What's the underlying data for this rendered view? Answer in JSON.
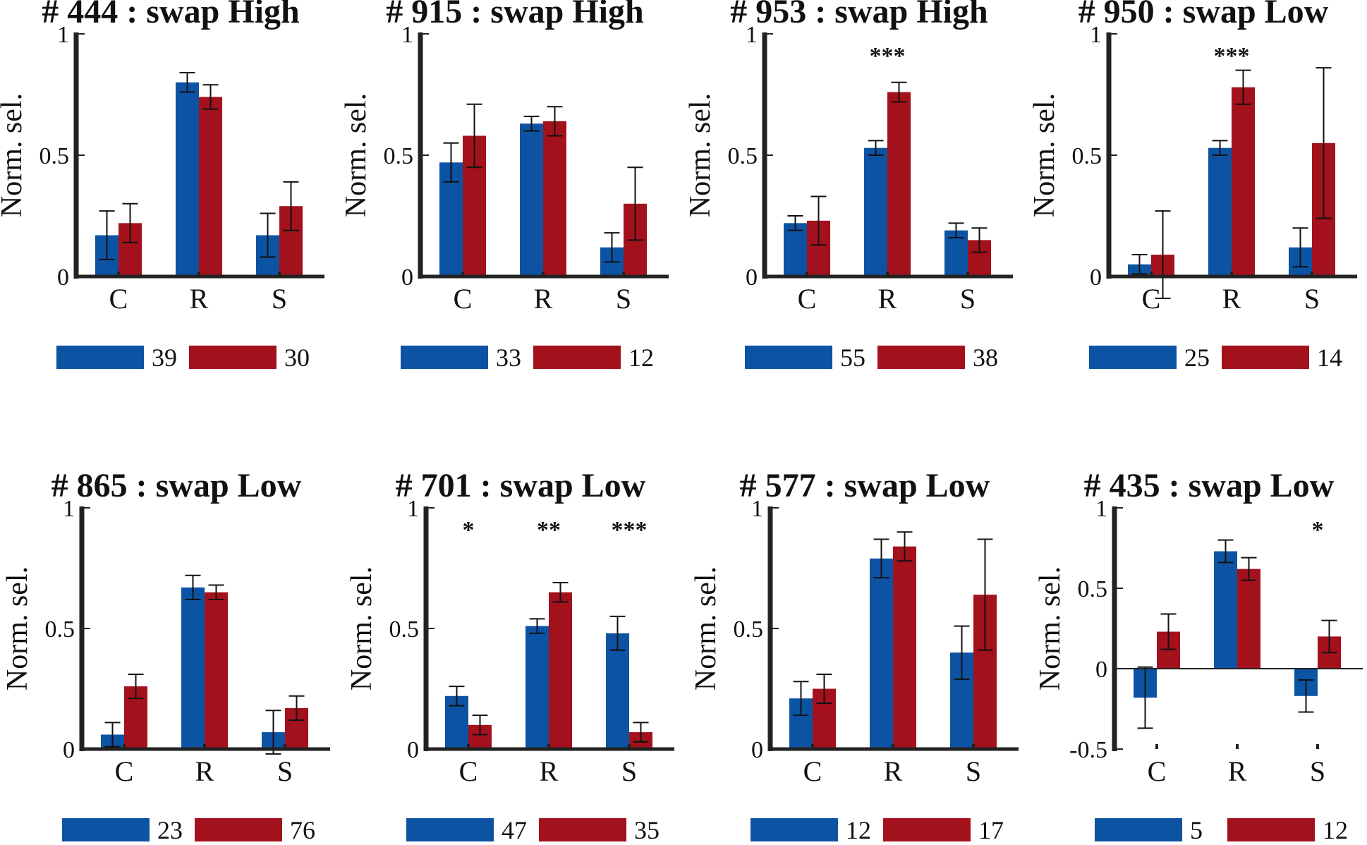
{
  "colors": {
    "blue": "#0d53a3",
    "red": "#a3111c",
    "axis": "#222222"
  },
  "chart_data": [
    {
      "type": "bar",
      "title": "# 444 : swap High",
      "ylabel": "Norm. sel.",
      "categories": [
        "C",
        "R",
        "S"
      ],
      "ylim": [
        0,
        1
      ],
      "yticks": [
        "0",
        "0.5",
        "1"
      ],
      "series": [
        {
          "name": "blue",
          "values": [
            0.17,
            0.8,
            0.17
          ],
          "errors": [
            0.1,
            0.04,
            0.09
          ],
          "count": "39"
        },
        {
          "name": "red",
          "values": [
            0.22,
            0.74,
            0.29
          ],
          "errors": [
            0.08,
            0.05,
            0.1
          ],
          "count": "30"
        }
      ],
      "significance": [
        "",
        "",
        ""
      ]
    },
    {
      "type": "bar",
      "title": "# 915 : swap High",
      "ylabel": "Norm. sel.",
      "categories": [
        "C",
        "R",
        "S"
      ],
      "ylim": [
        0,
        1
      ],
      "yticks": [
        "0",
        "0.5",
        "1"
      ],
      "series": [
        {
          "name": "blue",
          "values": [
            0.47,
            0.63,
            0.12
          ],
          "errors": [
            0.08,
            0.03,
            0.06
          ],
          "count": "33"
        },
        {
          "name": "red",
          "values": [
            0.58,
            0.64,
            0.3
          ],
          "errors": [
            0.13,
            0.06,
            0.15
          ],
          "count": "12"
        }
      ],
      "significance": [
        "",
        "",
        ""
      ]
    },
    {
      "type": "bar",
      "title": "# 953 : swap High",
      "ylabel": "Norm. sel.",
      "categories": [
        "C",
        "R",
        "S"
      ],
      "ylim": [
        0,
        1
      ],
      "yticks": [
        "0",
        "0.5",
        "1"
      ],
      "series": [
        {
          "name": "blue",
          "values": [
            0.22,
            0.53,
            0.19
          ],
          "errors": [
            0.03,
            0.03,
            0.03
          ],
          "count": "55"
        },
        {
          "name": "red",
          "values": [
            0.23,
            0.76,
            0.15
          ],
          "errors": [
            0.1,
            0.04,
            0.05
          ],
          "count": "38"
        }
      ],
      "significance": [
        "",
        "***",
        ""
      ]
    },
    {
      "type": "bar",
      "title": "# 950 : swap Low",
      "ylabel": "Norm. sel.",
      "categories": [
        "C",
        "R",
        "S"
      ],
      "ylim": [
        0,
        1
      ],
      "yticks": [
        "0",
        "0.5",
        "1"
      ],
      "series": [
        {
          "name": "blue",
          "values": [
            0.05,
            0.53,
            0.12
          ],
          "errors": [
            0.04,
            0.03,
            0.08
          ],
          "count": "25"
        },
        {
          "name": "red",
          "values": [
            0.09,
            0.78,
            0.55
          ],
          "errors": [
            0.18,
            0.07,
            0.31
          ],
          "count": "14"
        }
      ],
      "significance": [
        "",
        "***",
        ""
      ]
    },
    {
      "type": "bar",
      "title": "# 865 : swap Low",
      "ylabel": "Norm. sel.",
      "categories": [
        "C",
        "R",
        "S"
      ],
      "ylim": [
        0,
        1
      ],
      "yticks": [
        "0",
        "0.5",
        "1"
      ],
      "series": [
        {
          "name": "blue",
          "values": [
            0.06,
            0.67,
            0.07
          ],
          "errors": [
            0.05,
            0.05,
            0.09
          ],
          "count": "23"
        },
        {
          "name": "red",
          "values": [
            0.26,
            0.65,
            0.17
          ],
          "errors": [
            0.05,
            0.03,
            0.05
          ],
          "count": "76"
        }
      ],
      "significance": [
        "",
        "",
        ""
      ]
    },
    {
      "type": "bar",
      "title": "# 701 : swap Low",
      "ylabel": "Norm. sel.",
      "categories": [
        "C",
        "R",
        "S"
      ],
      "ylim": [
        0,
        1
      ],
      "yticks": [
        "0",
        "0.5",
        "1"
      ],
      "series": [
        {
          "name": "blue",
          "values": [
            0.22,
            0.51,
            0.48
          ],
          "errors": [
            0.04,
            0.03,
            0.07
          ],
          "count": "47"
        },
        {
          "name": "red",
          "values": [
            0.1,
            0.65,
            0.07
          ],
          "errors": [
            0.04,
            0.04,
            0.04
          ],
          "count": "35"
        }
      ],
      "significance": [
        "*",
        "**",
        "***"
      ]
    },
    {
      "type": "bar",
      "title": "# 577 : swap Low",
      "ylabel": "Norm. sel.",
      "categories": [
        "C",
        "R",
        "S"
      ],
      "ylim": [
        0,
        1
      ],
      "yticks": [
        "0",
        "0.5",
        "1"
      ],
      "series": [
        {
          "name": "blue",
          "values": [
            0.21,
            0.79,
            0.4
          ],
          "errors": [
            0.07,
            0.08,
            0.11
          ],
          "count": "12"
        },
        {
          "name": "red",
          "values": [
            0.25,
            0.84,
            0.64
          ],
          "errors": [
            0.06,
            0.06,
            0.23
          ],
          "count": "17"
        }
      ],
      "significance": [
        "",
        "",
        ""
      ]
    },
    {
      "type": "bar",
      "title": "# 435 : swap Low",
      "ylabel": "Norm. sel.",
      "categories": [
        "C",
        "R",
        "S"
      ],
      "ylim": [
        -0.5,
        1
      ],
      "yticks": [
        "-0.5",
        "0",
        "0.5",
        "1"
      ],
      "series": [
        {
          "name": "blue",
          "values": [
            -0.18,
            0.73,
            -0.17
          ],
          "errors": [
            0.19,
            0.07,
            0.1
          ],
          "count": "5"
        },
        {
          "name": "red",
          "values": [
            0.23,
            0.62,
            0.2
          ],
          "errors": [
            0.11,
            0.07,
            0.1
          ],
          "count": "12"
        }
      ],
      "significance": [
        "",
        "",
        "*"
      ]
    }
  ]
}
